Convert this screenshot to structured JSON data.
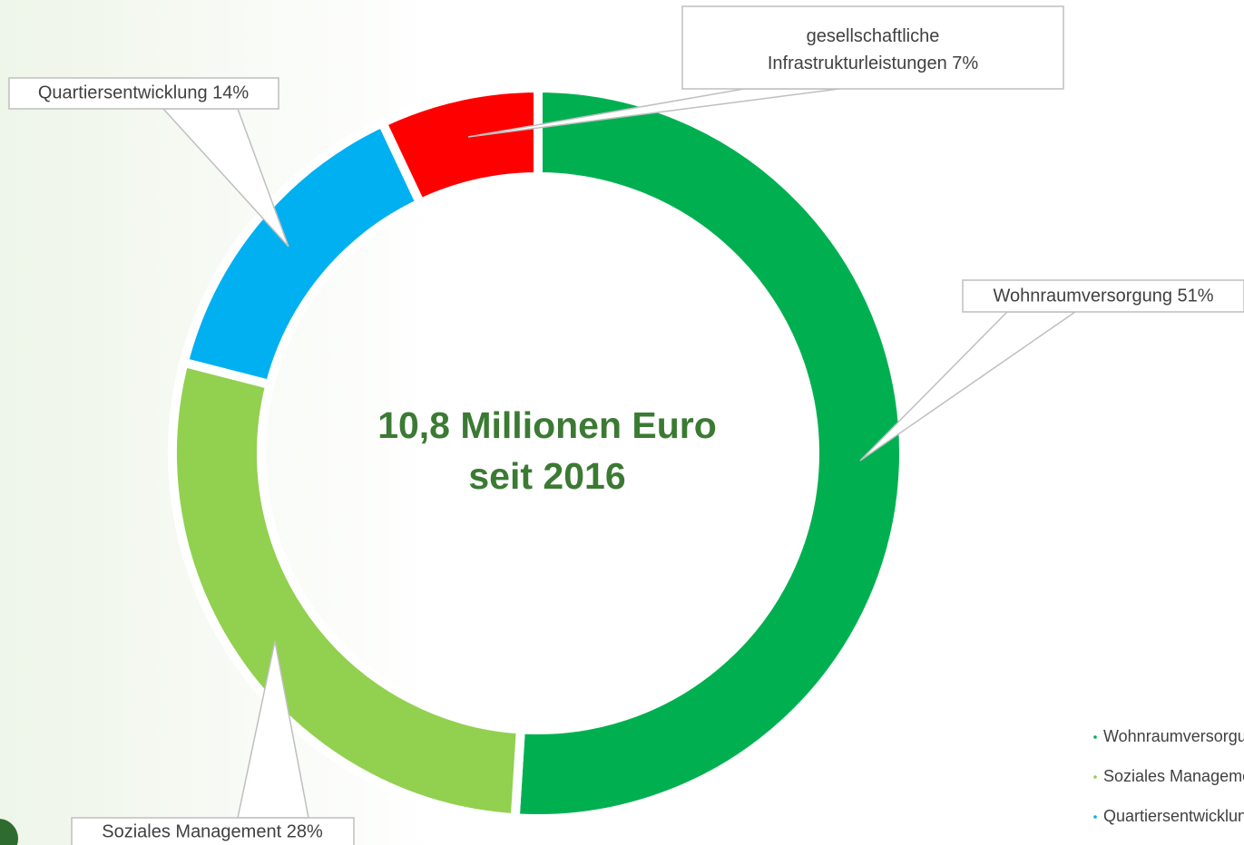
{
  "chart_data": {
    "type": "donut",
    "categories": [
      "Wohnraumversorgung",
      "Soziales Management",
      "Quartiersentwicklung",
      "gesellschaftliche Infrastrukturleistungen"
    ],
    "values": [
      51,
      28,
      14,
      7
    ],
    "value_labels": [
      "Wohnraumversorgung 51%",
      "Soziales Management 28%",
      "Quartiersentwicklung 14%",
      "gesellschaftliche\nInfrastrukturleistungen 7%"
    ],
    "colors": [
      "#00b050",
      "#92d050",
      "#00b0f0",
      "#ff0000"
    ],
    "annotations": [
      "10,8 Millionen Euro",
      "seit 2016"
    ],
    "legend": "bottom-right"
  }
}
